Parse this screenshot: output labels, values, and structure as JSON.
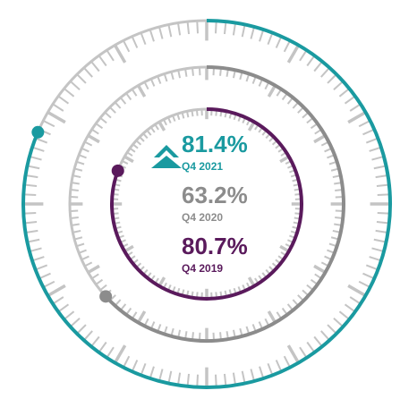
{
  "chart_data": {
    "type": "radial",
    "categories": [
      "Q4 2021",
      "Q4 2020",
      "Q4 2019"
    ],
    "values": [
      81.4,
      63.2,
      80.7
    ],
    "value_labels": [
      "81.4%",
      "63.2%",
      "80.7%"
    ],
    "colors": [
      "#1a9aa0",
      "#8c8c8c",
      "#5a1a5c"
    ],
    "ylim": [
      0,
      100
    ]
  }
}
